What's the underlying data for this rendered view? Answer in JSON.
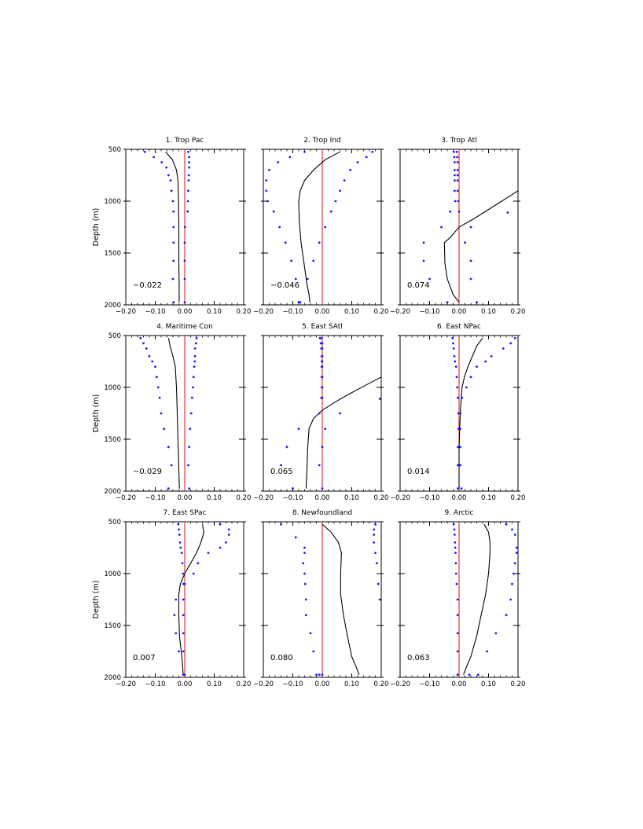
{
  "colors": {
    "mean_line": "#000000",
    "zero_line": "#dd1111",
    "spread_dots": "#1a1aff",
    "frame": "#000000"
  },
  "chart_data": [
    {
      "type": "line",
      "title": "1. Trop Pac",
      "ylabel": "Depth (m)",
      "xlim": [
        -0.2,
        0.2
      ],
      "ylim": [
        2000,
        500
      ],
      "x_ticks": [
        "-0.20",
        "-0.10",
        "0.00",
        "0.10",
        "0.20"
      ],
      "y_ticks": [
        "500",
        "1000",
        "1500",
        "2000"
      ],
      "annotation": "-0.022",
      "mean": {
        "x": [
          -0.065,
          -0.042,
          -0.028,
          -0.023,
          -0.021,
          -0.02,
          -0.02,
          -0.02,
          -0.019,
          -0.019,
          -0.019
        ],
        "y": [
          525,
          600,
          700,
          800,
          1000,
          1200,
          1400,
          1600,
          1800,
          1900,
          1975
        ]
      },
      "lower": {
        "x": [
          -0.135,
          -0.105,
          -0.078,
          -0.062,
          -0.055,
          -0.048,
          -0.045,
          -0.04,
          -0.038,
          -0.038,
          -0.038,
          -0.038,
          -0.04,
          -0.038
        ],
        "y": [
          525,
          575,
          625,
          675,
          750,
          800,
          900,
          1000,
          1100,
          1250,
          1400,
          1575,
          1750,
          1975
        ]
      },
      "upper": {
        "x": [
          0.012,
          0.015,
          0.015,
          0.015,
          0.014,
          0.013,
          0.012,
          0.011,
          0.01,
          0.001,
          0.0,
          0.0,
          0.0,
          0.0
        ],
        "y": [
          525,
          575,
          625,
          675,
          750,
          800,
          900,
          1000,
          1100,
          1250,
          1400,
          1575,
          1750,
          1975
        ]
      }
    },
    {
      "type": "line",
      "title": "2. Trop Ind",
      "ylabel": "",
      "xlim": [
        -0.2,
        0.2
      ],
      "ylim": [
        2000,
        500
      ],
      "x_ticks": [
        "-0.20",
        "-0.10",
        "0.00",
        "0.10",
        "0.20"
      ],
      "y_ticks": [
        "500",
        "1000",
        "1500",
        "2000"
      ],
      "annotation": "-0.046",
      "mean": {
        "x": [
          0.06,
          0.01,
          -0.03,
          -0.06,
          -0.075,
          -0.08,
          -0.078,
          -0.072,
          -0.062,
          -0.052,
          -0.045,
          -0.042
        ],
        "y": [
          525,
          600,
          700,
          800,
          900,
          1000,
          1200,
          1400,
          1600,
          1800,
          1900,
          1975
        ]
      },
      "lower": {
        "x": [
          -0.06,
          -0.11,
          -0.15,
          -0.18,
          -0.19,
          -0.19,
          -0.185,
          -0.165,
          -0.145,
          -0.125,
          -0.105,
          -0.09,
          -0.08
        ],
        "y": [
          525,
          575,
          625,
          700,
          800,
          900,
          1000,
          1100,
          1250,
          1400,
          1575,
          1750,
          1975
        ]
      },
      "upper": {
        "x": [
          0.17,
          0.15,
          0.12,
          0.095,
          0.075,
          0.06,
          0.045,
          0.03,
          0.01,
          -0.01,
          -0.03,
          -0.05,
          -0.075
        ],
        "y": [
          525,
          575,
          625,
          700,
          800,
          900,
          1000,
          1100,
          1250,
          1400,
          1575,
          1750,
          1975
        ]
      }
    },
    {
      "type": "line",
      "title": "3. Trop Atl",
      "ylabel": "",
      "xlim": [
        -0.2,
        0.2
      ],
      "ylim": [
        2000,
        500
      ],
      "x_ticks": [
        "-0.20",
        "-0.10",
        "0.00",
        "0.10",
        "0.20"
      ],
      "y_ticks": [
        "500",
        "1000",
        "1500",
        "2000"
      ],
      "annotation": "0.074",
      "mean": {
        "x": [
          0.2,
          0.15,
          0.1,
          0.05,
          0.0,
          -0.03,
          -0.05,
          -0.048,
          -0.04,
          -0.02,
          0.0
        ],
        "y": [
          900,
          990,
          1080,
          1170,
          1250,
          1350,
          1400,
          1600,
          1750,
          1900,
          1975
        ]
      },
      "lower": {
        "x": [
          -0.018,
          -0.016,
          -0.015,
          -0.015,
          -0.015,
          -0.015,
          -0.015,
          -0.013,
          -0.03,
          -0.06,
          -0.12,
          -0.12,
          -0.1,
          -0.04
        ],
        "y": [
          525,
          575,
          625,
          700,
          750,
          800,
          900,
          1000,
          1100,
          1250,
          1400,
          1575,
          1750,
          1975
        ]
      },
      "upper": {
        "x": [
          -0.008,
          -0.006,
          -0.005,
          -0.005,
          -0.005,
          -0.005,
          -0.005,
          -0.003,
          0.0,
          0.04,
          0.02,
          0.04,
          0.04,
          0.06
        ],
        "y": [
          525,
          575,
          625,
          700,
          750,
          800,
          900,
          1000,
          1100,
          1250,
          1400,
          1575,
          1750,
          1975
        ]
      },
      "extra_points": {
        "x": [
          0.165
        ],
        "y": [
          1110
        ]
      }
    },
    {
      "type": "line",
      "title": "4. Maritime Con",
      "ylabel": "Depth (m)",
      "xlim": [
        -0.2,
        0.2
      ],
      "ylim": [
        2000,
        500
      ],
      "x_ticks": [
        "-0.20",
        "-0.10",
        "0.00",
        "0.10",
        "0.20"
      ],
      "y_ticks": [
        "500",
        "1000",
        "1500",
        "2000"
      ],
      "annotation": "-0.029",
      "mean": {
        "x": [
          -0.055,
          -0.05,
          -0.04,
          -0.032,
          -0.028,
          -0.026,
          -0.024,
          -0.022,
          -0.02,
          -0.019,
          -0.018
        ],
        "y": [
          525,
          600,
          700,
          800,
          1000,
          1200,
          1400,
          1600,
          1800,
          1900,
          1975
        ]
      },
      "lower": {
        "x": [
          -0.15,
          -0.14,
          -0.13,
          -0.12,
          -0.11,
          -0.1,
          -0.095,
          -0.09,
          -0.085,
          -0.08,
          -0.07,
          -0.055,
          -0.045,
          -0.055
        ],
        "y": [
          525,
          575,
          625,
          700,
          750,
          800,
          900,
          1000,
          1100,
          1250,
          1400,
          1575,
          1750,
          1975
        ]
      },
      "upper": {
        "x": [
          0.04,
          0.038,
          0.035,
          0.035,
          0.034,
          0.032,
          0.03,
          0.028,
          0.025,
          0.022,
          0.018,
          0.015,
          0.012,
          0.015
        ],
        "y": [
          525,
          575,
          625,
          700,
          750,
          800,
          900,
          1000,
          1100,
          1250,
          1400,
          1575,
          1750,
          1975
        ]
      }
    },
    {
      "type": "line",
      "title": "5. East SAtl",
      "ylabel": "",
      "xlim": [
        -0.2,
        0.2
      ],
      "ylim": [
        2000,
        500
      ],
      "x_ticks": [
        "-0.20",
        "-0.10",
        "0.00",
        "0.10",
        "0.20"
      ],
      "y_ticks": [
        "500",
        "1000",
        "1500",
        "2000"
      ],
      "annotation": "0.065",
      "mean": {
        "x": [
          0.2,
          0.15,
          0.1,
          0.05,
          0.0,
          -0.03,
          -0.045,
          -0.05,
          -0.052,
          -0.055
        ],
        "y": [
          900,
          975,
          1050,
          1130,
          1220,
          1300,
          1400,
          1600,
          1800,
          1975
        ]
      },
      "lower": {
        "x": [
          -0.008,
          -0.005,
          -0.003,
          -0.002,
          -0.002,
          -0.002,
          -0.002,
          -0.002,
          -0.003,
          -0.01,
          -0.08,
          -0.12,
          -0.14,
          -0.1
        ],
        "y": [
          525,
          575,
          625,
          700,
          750,
          800,
          900,
          1000,
          1100,
          1250,
          1400,
          1575,
          1750,
          1975
        ]
      },
      "upper": {
        "x": [
          -0.002,
          0.0,
          0.0,
          0.0,
          0.0,
          0.0,
          0.0,
          0.0,
          0.0,
          0.06,
          0.01,
          0.0,
          -0.01,
          0.0
        ],
        "y": [
          525,
          575,
          625,
          700,
          750,
          800,
          900,
          1000,
          1100,
          1250,
          1400,
          1575,
          1750,
          1975
        ]
      },
      "extra_points": {
        "x": [
          0.195
        ],
        "y": [
          1110
        ]
      }
    },
    {
      "type": "line",
      "title": "6. East NPac",
      "ylabel": "",
      "xlim": [
        -0.2,
        0.2
      ],
      "ylim": [
        2000,
        500
      ],
      "x_ticks": [
        "-0.20",
        "-0.10",
        "0.00",
        "0.10",
        "0.20"
      ],
      "y_ticks": [
        "500",
        "1000",
        "1500",
        "2000"
      ],
      "annotation": "0.014",
      "mean": {
        "x": [
          0.08,
          0.06,
          0.045,
          0.03,
          0.018,
          0.01,
          0.005,
          0.002,
          0.0,
          0.0,
          0.0
        ],
        "y": [
          525,
          600,
          700,
          800,
          900,
          1000,
          1200,
          1400,
          1600,
          1800,
          1975
        ]
      },
      "lower": {
        "x": [
          -0.022,
          -0.02,
          -0.018,
          -0.016,
          -0.014,
          -0.01,
          -0.008,
          -0.006,
          -0.004,
          -0.002,
          -0.002,
          -0.004,
          -0.004,
          -0.004
        ],
        "y": [
          525,
          575,
          625,
          700,
          750,
          800,
          900,
          1000,
          1100,
          1250,
          1400,
          1575,
          1750,
          1975
        ]
      },
      "upper": {
        "x": [
          0.19,
          0.175,
          0.15,
          0.11,
          0.09,
          0.06,
          0.04,
          0.025,
          0.01,
          0.004,
          0.004,
          0.004,
          0.004,
          0.008
        ],
        "y": [
          525,
          575,
          625,
          700,
          750,
          800,
          900,
          1000,
          1100,
          1250,
          1400,
          1575,
          1750,
          1975
        ]
      }
    },
    {
      "type": "line",
      "title": "7. East SPac",
      "ylabel": "Depth (m)",
      "xlim": [
        -0.2,
        0.2
      ],
      "ylim": [
        2000,
        500
      ],
      "x_ticks": [
        "-0.20",
        "-0.10",
        "0.00",
        "0.10",
        "0.20"
      ],
      "y_ticks": [
        "500",
        "1000",
        "1500",
        "2000"
      ],
      "annotation": "0.007",
      "mean": {
        "x": [
          0.06,
          0.065,
          0.055,
          0.04,
          0.02,
          0.0,
          -0.015,
          -0.02,
          -0.02,
          -0.018,
          -0.01,
          -0.005
        ],
        "y": [
          525,
          600,
          700,
          800,
          900,
          1000,
          1100,
          1200,
          1400,
          1600,
          1800,
          1975
        ]
      },
      "lower": {
        "x": [
          -0.022,
          -0.02,
          -0.018,
          -0.016,
          -0.014,
          -0.01,
          -0.008,
          -0.006,
          -0.004,
          -0.03,
          -0.035,
          -0.03,
          -0.02,
          -0.005
        ],
        "y": [
          525,
          575,
          625,
          700,
          750,
          800,
          900,
          1000,
          1100,
          1250,
          1400,
          1575,
          1750,
          1975
        ]
      },
      "upper": {
        "x": [
          0.12,
          0.15,
          0.15,
          0.14,
          0.12,
          0.08,
          0.045,
          0.03,
          0.0,
          -0.005,
          -0.005,
          -0.005,
          -0.005,
          0.0
        ],
        "y": [
          525,
          575,
          625,
          700,
          750,
          800,
          900,
          1000,
          1100,
          1250,
          1400,
          1575,
          1750,
          1975
        ]
      }
    },
    {
      "type": "line",
      "title": "8. Newfoundland",
      "ylabel": "",
      "xlim": [
        -0.2,
        0.2
      ],
      "ylim": [
        2000,
        500
      ],
      "x_ticks": [
        "-0.20",
        "-0.10",
        "0.00",
        "0.10",
        "0.20"
      ],
      "y_ticks": [
        "500",
        "1000",
        "1500",
        "2000"
      ],
      "annotation": "0.080",
      "mean": {
        "x": [
          0.0,
          0.03,
          0.055,
          0.065,
          0.062,
          0.062,
          0.072,
          0.085,
          0.1,
          0.115,
          0.125
        ],
        "y": [
          525,
          600,
          700,
          800,
          1000,
          1200,
          1400,
          1600,
          1800,
          1900,
          1975
        ]
      },
      "lower": {
        "x": [
          -0.14,
          -0.09,
          -0.06,
          -0.06,
          -0.065,
          -0.06,
          -0.058,
          -0.055,
          -0.055,
          -0.04,
          -0.03,
          -0.02,
          -0.01,
          0.0
        ],
        "y": [
          525,
          650,
          750,
          800,
          900,
          1000,
          1100,
          1250,
          1400,
          1575,
          1750,
          1975,
          1975,
          1975
        ]
      },
      "upper": {
        "x": [
          0.18,
          0.175,
          0.175,
          0.175,
          0.18,
          0.185,
          0.19,
          0.195
        ],
        "y": [
          525,
          575,
          625,
          700,
          800,
          900,
          1100,
          1250
        ]
      }
    },
    {
      "type": "line",
      "title": "9. Arctic",
      "ylabel": "",
      "xlim": [
        -0.2,
        0.2
      ],
      "ylim": [
        2000,
        500
      ],
      "x_ticks": [
        "-0.20",
        "-0.10",
        "0.00",
        "0.10",
        "0.20"
      ],
      "y_ticks": [
        "500",
        "1000",
        "1500",
        "2000"
      ],
      "annotation": "0.063",
      "mean": {
        "x": [
          0.085,
          0.1,
          0.105,
          0.105,
          0.1,
          0.09,
          0.075,
          0.06,
          0.04,
          0.025,
          0.015
        ],
        "y": [
          525,
          600,
          700,
          800,
          1000,
          1200,
          1400,
          1600,
          1800,
          1900,
          1975
        ]
      },
      "lower": {
        "x": [
          -0.018,
          -0.016,
          -0.015,
          -0.014,
          -0.013,
          -0.012,
          -0.011,
          -0.01,
          -0.008,
          -0.005,
          -0.005,
          -0.005,
          -0.005,
          -0.005
        ],
        "y": [
          525,
          575,
          625,
          700,
          750,
          800,
          900,
          1000,
          1100,
          1250,
          1400,
          1575,
          1750,
          1975
        ]
      },
      "upper": {
        "x": [
          0.16,
          0.18,
          0.19,
          0.195,
          0.195,
          0.19,
          0.185,
          0.18,
          0.175,
          0.16,
          0.125,
          0.095,
          0.065,
          0.035
        ],
        "y": [
          525,
          575,
          625,
          750,
          800,
          900,
          1000,
          1100,
          1250,
          1400,
          1575,
          1750,
          1975,
          1975
        ]
      }
    }
  ]
}
